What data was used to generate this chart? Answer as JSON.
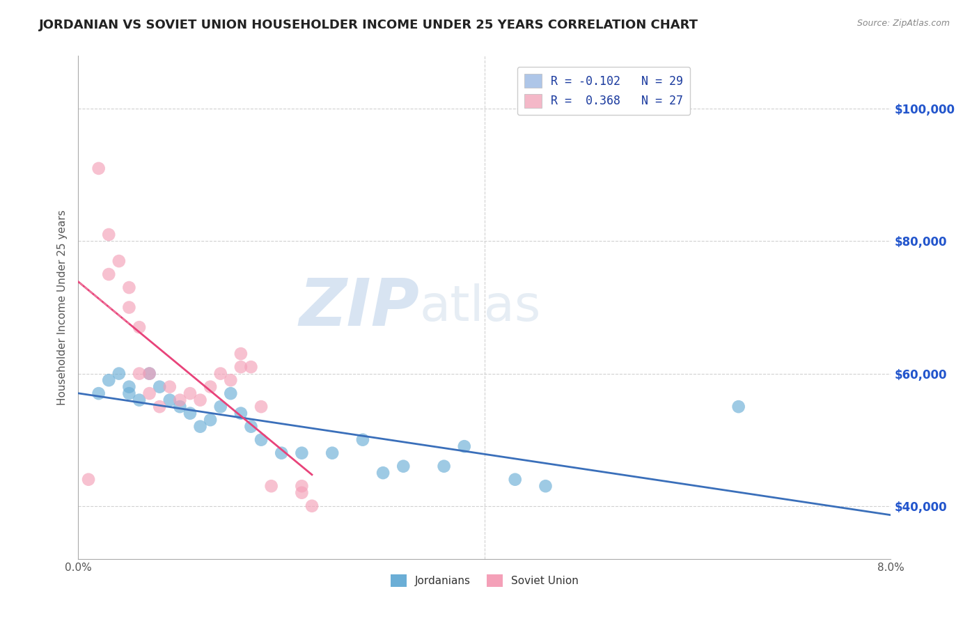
{
  "title": "JORDANIAN VS SOVIET UNION HOUSEHOLDER INCOME UNDER 25 YEARS CORRELATION CHART",
  "source": "Source: ZipAtlas.com",
  "ylabel": "Householder Income Under 25 years",
  "x_min": 0.0,
  "x_max": 0.08,
  "y_min": 32000,
  "y_max": 108000,
  "x_ticks": [
    0.0,
    0.02,
    0.04,
    0.06,
    0.08
  ],
  "x_tick_labels": [
    "0.0%",
    "",
    "",
    "",
    "8.0%"
  ],
  "y_ticks_right": [
    40000,
    60000,
    80000,
    100000
  ],
  "y_tick_labels_right": [
    "$40,000",
    "$60,000",
    "$80,000",
    "$100,000"
  ],
  "legend_entries": [
    {
      "label": "R = -0.102   N = 29",
      "color": "#aec6e8"
    },
    {
      "label": "R =  0.368   N = 27",
      "color": "#f4b8c8"
    }
  ],
  "jordanian_color": "#6baed6",
  "soviet_color": "#f4a0b8",
  "trend_jordanian_color": "#3a6fba",
  "trend_soviet_color": "#e8437a",
  "trend_jordanian_dashed_color": "#aaaaaa",
  "trend_soviet_dashed_color": "#f4a0b8",
  "watermark_zip": "ZIP",
  "watermark_atlas": "atlas",
  "jordanian_x": [
    0.002,
    0.003,
    0.004,
    0.005,
    0.005,
    0.006,
    0.007,
    0.008,
    0.009,
    0.01,
    0.011,
    0.012,
    0.013,
    0.014,
    0.015,
    0.016,
    0.017,
    0.018,
    0.02,
    0.022,
    0.025,
    0.028,
    0.03,
    0.032,
    0.036,
    0.038,
    0.043,
    0.046,
    0.065
  ],
  "jordanian_y": [
    57000,
    59000,
    60000,
    58000,
    57000,
    56000,
    60000,
    58000,
    56000,
    55000,
    54000,
    52000,
    53000,
    55000,
    57000,
    54000,
    52000,
    50000,
    48000,
    48000,
    48000,
    50000,
    45000,
    46000,
    46000,
    49000,
    44000,
    43000,
    55000
  ],
  "soviet_x": [
    0.001,
    0.002,
    0.003,
    0.003,
    0.004,
    0.005,
    0.005,
    0.006,
    0.006,
    0.007,
    0.007,
    0.008,
    0.009,
    0.01,
    0.011,
    0.012,
    0.013,
    0.014,
    0.015,
    0.016,
    0.016,
    0.017,
    0.018,
    0.019,
    0.022,
    0.022,
    0.023
  ],
  "soviet_y": [
    44000,
    91000,
    81000,
    75000,
    77000,
    73000,
    70000,
    67000,
    60000,
    60000,
    57000,
    55000,
    58000,
    56000,
    57000,
    56000,
    58000,
    60000,
    59000,
    61000,
    63000,
    61000,
    55000,
    43000,
    43000,
    42000,
    40000
  ],
  "background_color": "#ffffff",
  "grid_color": "#cccccc",
  "title_color": "#222222",
  "axis_label_color": "#555555"
}
